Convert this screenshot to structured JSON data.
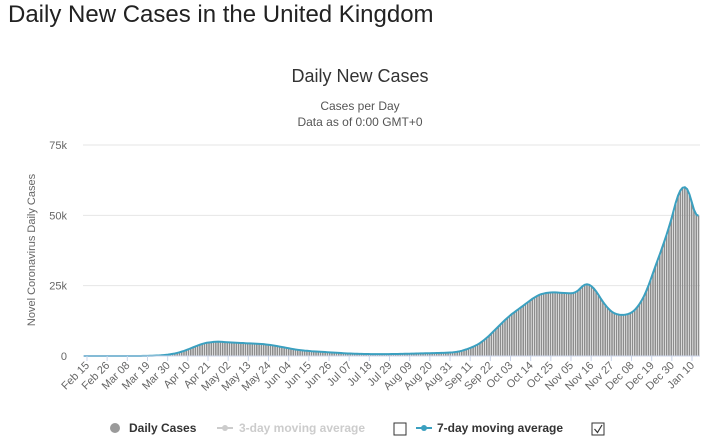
{
  "page_heading": "Daily New Cases in the United Kingdom",
  "colors": {
    "bars": "#8c8c8c",
    "moving_average_7day": "#3ba0c0",
    "moving_average_3day_legend": "#cccccc",
    "axis": "#ccd6eb",
    "grid": "#e6e6e6"
  },
  "legend_icons": {
    "daily_cases": "gray-circle-icon",
    "three_day": "line-dot-icon",
    "seven_day": "line-dot-icon",
    "three_day_toggle": "checkbox-unchecked-icon",
    "seven_day_toggle": "checkbox-checked-icon"
  },
  "chart_data": {
    "type": "bar",
    "title": "Daily New Cases",
    "subtitle_line1": "Cases per Day",
    "subtitle_line2": "Data as of 0:00 GMT+0",
    "ylabel": "Novel Coronavirus Daily Cases",
    "xlabel": "",
    "ylim": [
      0,
      75000
    ],
    "y_ticks": [
      0,
      25000,
      50000,
      75000
    ],
    "y_tick_labels": [
      "0",
      "25k",
      "50k",
      "75k"
    ],
    "x_tick_labels": [
      "Feb 15",
      "Feb 26",
      "Mar 08",
      "Mar 19",
      "Mar 30",
      "Apr 10",
      "Apr 21",
      "May 02",
      "May 13",
      "May 24",
      "Jun 04",
      "Jun 15",
      "Jun 26",
      "Jul 07",
      "Jul 18",
      "Jul 29",
      "Aug 09",
      "Aug 20",
      "Aug 31",
      "Sep 11",
      "Sep 22",
      "Oct 03",
      "Oct 14",
      "Oct 25",
      "Nov 05",
      "Nov 16",
      "Nov 27",
      "Dec 08",
      "Dec 19",
      "Dec 30",
      "Jan 10"
    ],
    "grid": true,
    "legend_position": "bottom",
    "series": [
      {
        "name": "Daily Cases",
        "type": "bar",
        "visible": true,
        "values": [
          0,
          0,
          0,
          0,
          0,
          0,
          0,
          0,
          0,
          0,
          0,
          0,
          0,
          0,
          0,
          0,
          0,
          0,
          0,
          0,
          0,
          0,
          5,
          10,
          15,
          20,
          30,
          45,
          60,
          80,
          100,
          130,
          160,
          200,
          250,
          320,
          400,
          500,
          620,
          760,
          900,
          1100,
          1300,
          1550,
          1800,
          2100,
          2400,
          2750,
          3100,
          3400,
          3700,
          4000,
          4300,
          4500,
          4700,
          4800,
          4900,
          5000,
          5050,
          5100,
          5050,
          5000,
          4950,
          4900,
          4850,
          4800,
          4750,
          4700,
          4650,
          4600,
          4600,
          4550,
          4500,
          4500,
          4450,
          4400,
          4350,
          4300,
          4250,
          4200,
          4100,
          4000,
          3900,
          3800,
          3650,
          3500,
          3350,
          3200,
          3050,
          2900,
          2750,
          2600,
          2450,
          2300,
          2200,
          2100,
          2000,
          1900,
          1850,
          1800,
          1700,
          1650,
          1600,
          1550,
          1500,
          1450,
          1400,
          1350,
          1300,
          1250,
          1200,
          1150,
          1100,
          1050,
          1000,
          950,
          900,
          870,
          840,
          810,
          780,
          760,
          740,
          720,
          700,
          690,
          680,
          670,
          660,
          660,
          660,
          660,
          660,
          670,
          680,
          690,
          700,
          710,
          720,
          740,
          760,
          780,
          800,
          820,
          840,
          860,
          880,
          900,
          920,
          940,
          960,
          980,
          1000,
          1020,
          1040,
          1060,
          1080,
          1100,
          1130,
          1160,
          1200,
          1250,
          1300,
          1400,
          1500,
          1650,
          1850,
          2100,
          2350,
          2650,
          2950,
          3300,
          3700,
          4100,
          4600,
          5200,
          5800,
          6500,
          7200,
          8000,
          8800,
          9600,
          10400,
          11200,
          12000,
          12800,
          13500,
          14200,
          14900,
          15500,
          16100,
          16700,
          17300,
          17900,
          18500,
          19100,
          19700,
          20300,
          20800,
          21300,
          21700,
          22000,
          22200,
          22400,
          22500,
          22550,
          22600,
          22600,
          22550,
          22500,
          22450,
          22400,
          22350,
          22300,
          22300,
          22400,
          22700,
          23200,
          24000,
          24800,
          25300,
          25500,
          25300,
          24800,
          24000,
          23000,
          21800,
          20500,
          19300,
          18200,
          17200,
          16400,
          15700,
          15200,
          14900,
          14700,
          14600,
          14600,
          14700,
          14900,
          15200,
          15700,
          16400,
          17300,
          18400,
          19700,
          21200,
          23000,
          25000,
          27200,
          29500,
          31800,
          34000,
          36200,
          38500,
          40800,
          43200,
          45800,
          48500,
          51500,
          54500,
          57000,
          58800,
          59800,
          60000,
          59300,
          57500,
          54800,
          52000,
          50300,
          49800
        ]
      },
      {
        "name": "3-day moving average",
        "type": "line",
        "visible": false,
        "values": []
      },
      {
        "name": "7-day moving average",
        "type": "line",
        "visible": true,
        "values": [
          0,
          0,
          0,
          0,
          0,
          0,
          0,
          0,
          0,
          0,
          0,
          0,
          0,
          0,
          0,
          0,
          0,
          0,
          0,
          0,
          0,
          0,
          5,
          10,
          15,
          20,
          30,
          45,
          60,
          80,
          100,
          130,
          160,
          200,
          250,
          320,
          400,
          500,
          620,
          760,
          900,
          1100,
          1300,
          1550,
          1800,
          2100,
          2400,
          2750,
          3100,
          3400,
          3700,
          4000,
          4300,
          4500,
          4700,
          4800,
          4900,
          5000,
          5050,
          5100,
          5050,
          5000,
          4950,
          4900,
          4850,
          4800,
          4750,
          4700,
          4650,
          4600,
          4600,
          4550,
          4500,
          4500,
          4450,
          4400,
          4350,
          4300,
          4250,
          4200,
          4100,
          4000,
          3900,
          3800,
          3650,
          3500,
          3350,
          3200,
          3050,
          2900,
          2750,
          2600,
          2450,
          2300,
          2200,
          2100,
          2000,
          1900,
          1850,
          1800,
          1700,
          1650,
          1600,
          1550,
          1500,
          1450,
          1400,
          1350,
          1300,
          1250,
          1200,
          1150,
          1100,
          1050,
          1000,
          950,
          900,
          870,
          840,
          810,
          780,
          760,
          740,
          720,
          700,
          690,
          680,
          670,
          660,
          660,
          660,
          660,
          660,
          670,
          680,
          690,
          700,
          710,
          720,
          740,
          760,
          780,
          800,
          820,
          840,
          860,
          880,
          900,
          920,
          940,
          960,
          980,
          1000,
          1020,
          1040,
          1060,
          1080,
          1100,
          1130,
          1160,
          1200,
          1250,
          1300,
          1400,
          1500,
          1650,
          1850,
          2100,
          2350,
          2650,
          2950,
          3300,
          3700,
          4100,
          4600,
          5200,
          5800,
          6500,
          7200,
          8000,
          8800,
          9600,
          10400,
          11200,
          12000,
          12800,
          13500,
          14200,
          14900,
          15500,
          16100,
          16700,
          17300,
          17900,
          18500,
          19100,
          19700,
          20300,
          20800,
          21300,
          21700,
          22000,
          22200,
          22400,
          22500,
          22550,
          22600,
          22600,
          22550,
          22500,
          22450,
          22400,
          22350,
          22300,
          22300,
          22400,
          22700,
          23200,
          24000,
          24800,
          25300,
          25500,
          25300,
          24800,
          24000,
          23000,
          21800,
          20500,
          19300,
          18200,
          17200,
          16400,
          15700,
          15200,
          14900,
          14700,
          14600,
          14600,
          14700,
          14900,
          15200,
          15700,
          16400,
          17300,
          18400,
          19700,
          21200,
          23000,
          25000,
          27200,
          29500,
          31800,
          34000,
          36200,
          38500,
          40800,
          43200,
          45800,
          48500,
          51500,
          54500,
          57000,
          58800,
          59800,
          60000,
          59300,
          57500,
          54800,
          52000,
          50300,
          49800
        ]
      }
    ]
  }
}
